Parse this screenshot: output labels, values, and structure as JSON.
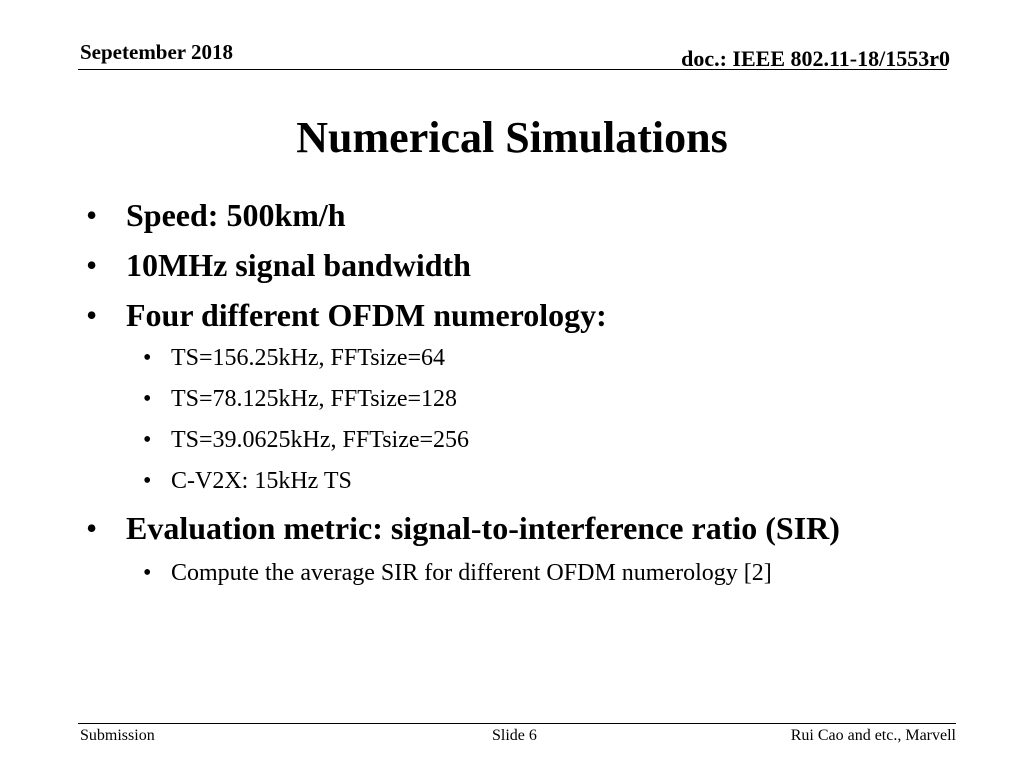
{
  "header": {
    "date": "Sepetember 2018",
    "doc": "doc.: IEEE 802.11-18/1553r0"
  },
  "title": "Numerical Simulations",
  "bullets": {
    "b1": "Speed: 500km/h",
    "b2": "10MHz signal bandwidth",
    "b3": "Four different OFDM numerology:",
    "b3_sub": [
      "TS=156.25kHz, FFTsize=64",
      "TS=78.125kHz, FFTsize=128",
      "TS=39.0625kHz, FFTsize=256",
      "C-V2X: 15kHz TS"
    ],
    "b4": "Evaluation metric: signal-to-interference ratio (SIR)",
    "b4_sub": [
      "Compute the average SIR for different OFDM numerology [2]"
    ]
  },
  "footer": {
    "left": "Submission",
    "center": "Slide 6",
    "right": "Rui Cao and etc., Marvell"
  }
}
